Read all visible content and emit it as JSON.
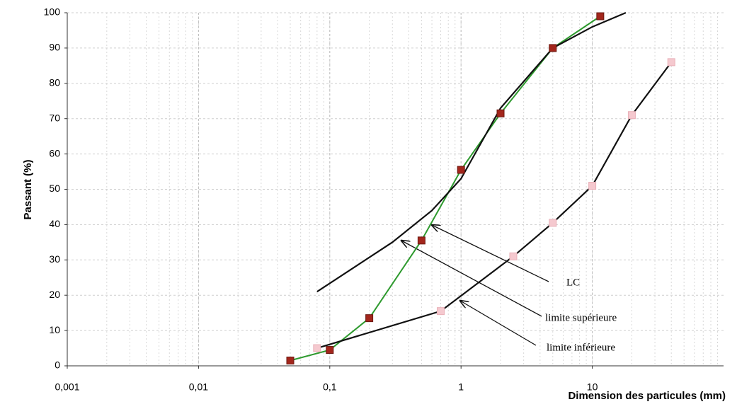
{
  "chart_data": {
    "type": "line",
    "x_label": "Dimension des particules (mm)",
    "y_label": "Passant (%)",
    "xscale": "log",
    "xlim": [
      0.001,
      100
    ],
    "xticks": [
      {
        "value": 0.001,
        "label": "0,001"
      },
      {
        "value": 0.01,
        "label": "0,01"
      },
      {
        "value": 0.1,
        "label": "0,1"
      },
      1,
      10
    ],
    "ylim": [
      0,
      100
    ],
    "yticks": [
      0,
      10,
      20,
      30,
      40,
      50,
      60,
      70,
      80,
      90,
      100
    ],
    "grid": true,
    "series": [
      {
        "name": "LC",
        "color": "#2e9a2e",
        "marker_color": "#a3261c",
        "x": [
          0.05,
          0.1,
          0.2,
          0.5,
          1,
          2,
          5,
          11.5
        ],
        "values": [
          1.5,
          4.5,
          13.5,
          35.5,
          55.5,
          71.5,
          90,
          99
        ]
      },
      {
        "name": "limite supérieure",
        "color": "#111111",
        "x": [
          0.08,
          0.3,
          0.6,
          1,
          2,
          5,
          10,
          18
        ],
        "values": [
          21,
          35,
          44,
          53,
          73,
          90,
          96,
          100
        ]
      },
      {
        "name": "limite inférieure",
        "color": "#111111",
        "marker_color": "#f5c9cf",
        "x": [
          0.08,
          0.7,
          2.5,
          5,
          10,
          20,
          40
        ],
        "values": [
          5,
          15.5,
          31,
          40.5,
          51,
          71,
          86
        ]
      }
    ]
  }
}
